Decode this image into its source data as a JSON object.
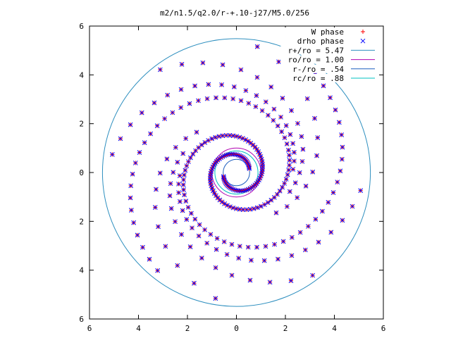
{
  "chart_data": {
    "type": "scatter",
    "title": "m2/n1.5/q2.0/r-+.10-j27/M5.0/256",
    "xlabel": "",
    "ylabel": "",
    "xlim": [
      -6,
      6
    ],
    "ylim": [
      -6,
      6
    ],
    "x_tick_labels": [
      "6",
      "4",
      "2",
      "0",
      "2",
      "4",
      "6"
    ],
    "y_tick_labels": [
      "6",
      "4",
      "2",
      "0",
      "2",
      "4",
      "6"
    ],
    "grid": false,
    "legend_position": "top-right",
    "series": [
      {
        "name": "W phase",
        "kind": "points",
        "marker": "plus",
        "color": "#ff0000",
        "model": "two-armed spiral, points along both arms from r ≈ 0.5 to r ≈ 5.3"
      },
      {
        "name": "drho phase",
        "kind": "points",
        "marker": "cross",
        "color": "#0000ff",
        "model": "two-armed spiral, coincident with W phase"
      },
      {
        "name": "r+/ro = 5.47",
        "kind": "circle",
        "radius": 5.47,
        "color": "#2e8fbf"
      },
      {
        "name": "ro/ro = 1.00",
        "kind": "circle",
        "radius": 1.0,
        "color": "#b000b0"
      },
      {
        "name": "r-/ro = .54",
        "kind": "circle",
        "radius": 0.54,
        "color": "#1f5fbf"
      },
      {
        "name": "rc/ro = .88",
        "kind": "circle",
        "radius": 0.88,
        "color": "#00c0c0"
      }
    ]
  }
}
